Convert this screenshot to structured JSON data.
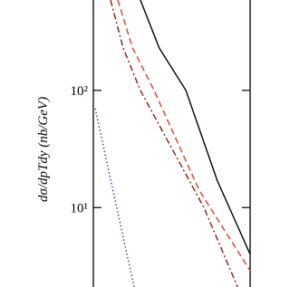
{
  "chart_data": {
    "type": "line",
    "y_label": "dσ/dpTdy (nb/GeV)",
    "log_y": true,
    "xlim": [
      0,
      1
    ],
    "ylim": [
      2.1,
      590
    ],
    "yticks": [
      {
        "value": 10,
        "label": "10¹"
      },
      {
        "value": 100,
        "label": "10²"
      }
    ],
    "series": [
      {
        "name": "solid",
        "color": "#000000",
        "dash": "none",
        "x": [
          0.3,
          0.42,
          0.59,
          0.79,
          1.0
        ],
        "values": [
          590,
          230,
          100,
          17,
          4
        ]
      },
      {
        "name": "dashed",
        "color": "#e8392b",
        "dash": "7 4",
        "x": [
          0.156,
          0.25,
          0.387,
          0.676,
          1.0
        ],
        "values": [
          590,
          230,
          100,
          14,
          2.9
        ]
      },
      {
        "name": "dash-dot",
        "color": "#8b1a10",
        "dash": "7 3 2 3",
        "x": [
          0.11,
          0.19,
          0.3,
          0.705,
          0.92
        ],
        "values": [
          590,
          230,
          100,
          10,
          2.1
        ]
      },
      {
        "name": "dotted",
        "color": "#3a3aa8",
        "dash": "1.5 2.5",
        "x": [
          0.012,
          0.1,
          0.26
        ],
        "values": [
          70,
          20,
          2.1
        ]
      }
    ]
  }
}
